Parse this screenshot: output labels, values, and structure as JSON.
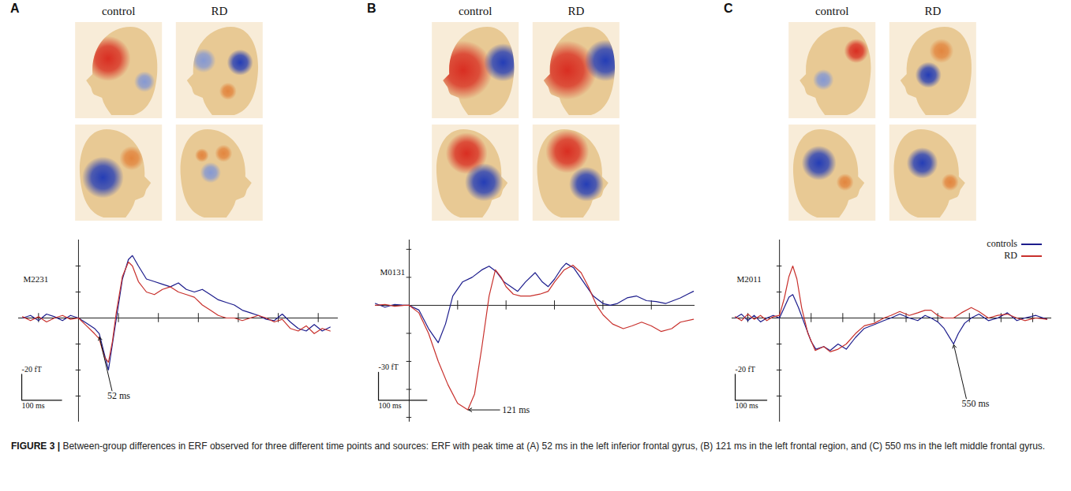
{
  "caption": {
    "label": "FIGURE 3 |",
    "text": "Between-group differences in ERF observed for three different time points and sources: ERF with peak time at (A) 52 ms in the left inferior frontal gyrus, (B) 121 ms in the left frontal region, and (C) 550 ms in the left middle frontal gyrus."
  },
  "chart_data": [
    {
      "type": "line",
      "panel": "A",
      "head_labels": [
        "control",
        "RD"
      ],
      "channel": "M2231",
      "xlim": [
        -150,
        650
      ],
      "xticks": [
        -100,
        100,
        200,
        300,
        400,
        500,
        600
      ],
      "ylim": [
        -80,
        60
      ],
      "yticks": [
        -60,
        -40,
        -20,
        20,
        40
      ],
      "tick_labels": false,
      "scale_bar": {
        "amplitude": {
          "value": -20,
          "label": "-20 fT"
        },
        "time": {
          "value": 100,
          "label": "100 ms"
        }
      },
      "annotations": [
        {
          "text": "52 ms",
          "x": 52,
          "y": -14
        }
      ],
      "series": [
        {
          "color": "#1c1c8c",
          "x": [
            -140,
            -120,
            -100,
            -80,
            -60,
            -40,
            -20,
            0,
            20,
            40,
            52,
            65,
            75,
            85,
            95,
            110,
            125,
            135,
            150,
            170,
            190,
            210,
            230,
            250,
            270,
            290,
            310,
            330,
            350,
            370,
            390,
            410,
            430,
            450,
            470,
            490,
            510,
            530,
            550,
            570,
            590,
            610,
            630
          ],
          "values": [
            0,
            2,
            -2,
            3,
            1,
            -2,
            2,
            0,
            -4,
            -8,
            -12,
            -28,
            -40,
            -20,
            0,
            30,
            45,
            48,
            40,
            30,
            28,
            26,
            24,
            27,
            22,
            20,
            22,
            18,
            14,
            12,
            10,
            6,
            4,
            2,
            -1,
            -2,
            3,
            -3,
            -8,
            -10,
            -5,
            -10,
            -7
          ]
        },
        {
          "color": "#c8302c",
          "x": [
            -140,
            -120,
            -100,
            -80,
            -60,
            -40,
            -20,
            0,
            20,
            40,
            52,
            65,
            75,
            85,
            95,
            110,
            125,
            135,
            150,
            170,
            190,
            210,
            230,
            250,
            270,
            290,
            310,
            330,
            350,
            370,
            390,
            410,
            430,
            450,
            470,
            490,
            510,
            530,
            550,
            570,
            590,
            610,
            630
          ],
          "values": [
            1,
            -2,
            1,
            -3,
            0,
            2,
            -1,
            0,
            -6,
            -12,
            -16,
            -30,
            -34,
            -18,
            5,
            32,
            43,
            40,
            28,
            20,
            18,
            22,
            24,
            20,
            18,
            16,
            10,
            6,
            2,
            0,
            0,
            -2,
            0,
            2,
            0,
            -3,
            -1,
            -8,
            -10,
            -6,
            -12,
            -8,
            -10
          ]
        }
      ]
    },
    {
      "type": "line",
      "panel": "B",
      "head_labels": [
        "control",
        "RD"
      ],
      "channel": "M0131",
      "xlim": [
        -70,
        590
      ],
      "xticks": [
        100,
        200,
        300,
        400,
        500
      ],
      "ylim": [
        -125,
        70
      ],
      "yticks": [
        -120,
        -90,
        -60,
        -30,
        30,
        60
      ],
      "tick_labels": false,
      "scale_bar": {
        "amplitude": {
          "value": -30,
          "label": "-30 fT"
        },
        "time": {
          "value": 100,
          "label": "100 ms"
        }
      },
      "annotations": [
        {
          "text": "121 ms",
          "x": 121,
          "y": -112
        }
      ],
      "series": [
        {
          "color": "#1c1c8c",
          "x": [
            -70,
            -50,
            -30,
            -10,
            0,
            20,
            40,
            60,
            75,
            90,
            110,
            130,
            150,
            165,
            180,
            196,
            210,
            224,
            240,
            260,
            275,
            287,
            300,
            315,
            324,
            340,
            360,
            380,
            400,
            415,
            430,
            450,
            469,
            490,
            510,
            530,
            545,
            560,
            575,
            587
          ],
          "values": [
            2,
            -2,
            1,
            0,
            0,
            -5,
            -25,
            -40,
            -20,
            10,
            25,
            30,
            38,
            42,
            36,
            25,
            20,
            15,
            25,
            35,
            25,
            20,
            28,
            40,
            45,
            40,
            25,
            10,
            2,
            0,
            2,
            8,
            10,
            5,
            4,
            2,
            5,
            8,
            12,
            15
          ]
        },
        {
          "color": "#c8302c",
          "x": [
            -70,
            -50,
            -30,
            -10,
            0,
            20,
            40,
            60,
            80,
            100,
            121,
            135,
            150,
            165,
            178,
            190,
            200,
            215,
            230,
            250,
            270,
            287,
            300,
            320,
            338,
            355,
            370,
            387,
            400,
            420,
            442,
            460,
            480,
            500,
            520,
            542,
            560,
            587
          ],
          "values": [
            0,
            1,
            -1,
            0,
            0,
            -8,
            -30,
            -60,
            -85,
            -105,
            -112,
            -95,
            -45,
            10,
            38,
            30,
            20,
            12,
            10,
            10,
            12,
            15,
            25,
            38,
            43,
            35,
            20,
            0,
            -10,
            -20,
            -25,
            -22,
            -18,
            -22,
            -28,
            -25,
            -18,
            -15
          ]
        }
      ]
    },
    {
      "type": "line",
      "panel": "C",
      "head_labels": [
        "control",
        "RD"
      ],
      "channel": "M2011",
      "xlim": [
        -150,
        860
      ],
      "xticks": [
        -100,
        100,
        200,
        300,
        400,
        500,
        600,
        700,
        800
      ],
      "ylim": [
        -80,
        60
      ],
      "yticks": [
        -60,
        -40,
        -20,
        20,
        40
      ],
      "tick_labels": false,
      "legend": "upper right",
      "scale_bar": {
        "amplitude": {
          "value": -20,
          "label": "-20 fT"
        },
        "time": {
          "value": 100,
          "label": "100 ms"
        }
      },
      "annotations": [
        {
          "text": "550 ms",
          "x": 550,
          "y": -20
        }
      ],
      "series": [
        {
          "name": "controls",
          "color": "#1c1c8c",
          "x": [
            -140,
            -120,
            -100,
            -80,
            -60,
            -40,
            -20,
            0,
            15,
            30,
            42,
            60,
            80,
            100,
            115,
            140,
            160,
            185,
            211,
            240,
            268,
            300,
            330,
            352,
            380,
            410,
            437,
            460,
            479,
            500,
            520,
            535,
            550,
            565,
            585,
            606,
            630,
            660,
            690,
            720,
            750,
            775,
            810,
            845
          ],
          "values": [
            0,
            3,
            -2,
            2,
            -3,
            0,
            2,
            0,
            8,
            16,
            18,
            8,
            -5,
            -18,
            -24,
            -22,
            -25,
            -20,
            -24,
            -15,
            -8,
            -5,
            -2,
            0,
            3,
            0,
            -2,
            2,
            0,
            -3,
            -8,
            -14,
            -20,
            -12,
            -4,
            0,
            3,
            -2,
            0,
            4,
            -2,
            0,
            2,
            -1
          ]
        },
        {
          "name": "RD",
          "color": "#c8302c",
          "x": [
            -140,
            -120,
            -100,
            -80,
            -60,
            -40,
            -20,
            0,
            15,
            30,
            42,
            55,
            70,
            90,
            113,
            140,
            160,
            185,
            211,
            240,
            268,
            300,
            330,
            352,
            380,
            410,
            437,
            460,
            479,
            500,
            520,
            550,
            575,
            606,
            630,
            660,
            690,
            720,
            750,
            775,
            810,
            845
          ],
          "values": [
            1,
            -2,
            3,
            -1,
            2,
            -2,
            1,
            2,
            15,
            32,
            40,
            30,
            8,
            -12,
            -25,
            -22,
            -26,
            -24,
            -20,
            -12,
            -6,
            -4,
            0,
            2,
            5,
            2,
            4,
            6,
            6,
            2,
            0,
            0,
            4,
            8,
            5,
            0,
            2,
            3,
            0,
            -2,
            0,
            -1
          ]
        }
      ]
    }
  ]
}
